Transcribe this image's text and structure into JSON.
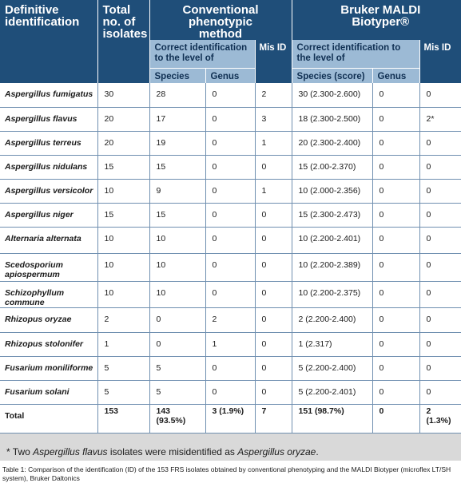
{
  "header": {
    "col_definitive": "Definitive identification",
    "col_total": "Total no. of isolates",
    "col_conventional": "Conventional phenotypic method",
    "col_bruker": "Bruker MALDI Biotyper®",
    "conv_correct": "Correct identification to the level of",
    "conv_misid": "Mis ID",
    "bruker_correct": "Correct identification to the level of",
    "bruker_misid": "Mis ID",
    "conv_species": "Species",
    "conv_genus": "Genus",
    "bruker_species": "Species (score)",
    "bruker_genus": "Genus"
  },
  "rows": [
    {
      "name": "Aspergillus fumigatus",
      "total": "30",
      "conv_species": "28",
      "conv_genus": "0",
      "conv_misid": "2",
      "bruker_species": "30 (2.300-2.600)",
      "bruker_genus": "0",
      "bruker_misid": "0"
    },
    {
      "name": "Aspergillus flavus",
      "total": "20",
      "conv_species": "17",
      "conv_genus": "0",
      "conv_misid": "3",
      "bruker_species": "18 (2.300-2.500)",
      "bruker_genus": "0",
      "bruker_misid": "2*"
    },
    {
      "name": "Aspergillus terreus",
      "total": "20",
      "conv_species": "19",
      "conv_genus": "0",
      "conv_misid": "1",
      "bruker_species": "20 (2.300-2.400)",
      "bruker_genus": "0",
      "bruker_misid": "0"
    },
    {
      "name": "Aspergillus nidulans",
      "total": "15",
      "conv_species": "15",
      "conv_genus": "0",
      "conv_misid": "0",
      "bruker_species": "15 (2.00-2.370)",
      "bruker_genus": "0",
      "bruker_misid": "0"
    },
    {
      "name": "Aspergillus versicolor",
      "total": "10",
      "conv_species": "9",
      "conv_genus": "0",
      "conv_misid": "1",
      "bruker_species": "10 (2.000-2.356)",
      "bruker_genus": "0",
      "bruker_misid": "0"
    },
    {
      "name": "Aspergillus niger",
      "total": "15",
      "conv_species": "15",
      "conv_genus": "0",
      "conv_misid": "0",
      "bruker_species": "15 (2.300-2.473)",
      "bruker_genus": "0",
      "bruker_misid": "0"
    },
    {
      "name": "Alternaria alternata",
      "total": "10",
      "conv_species": "10",
      "conv_genus": "0",
      "conv_misid": "0",
      "bruker_species": "10 (2.200-2.401)",
      "bruker_genus": "0",
      "bruker_misid": "0"
    },
    {
      "name": "Scedosporium apiospermum",
      "total": "10",
      "conv_species": "10",
      "conv_genus": "0",
      "conv_misid": "0",
      "bruker_species": "10 (2.200-2.389)",
      "bruker_genus": "0",
      "bruker_misid": "0"
    },
    {
      "name": "Schizophyllum commune",
      "total": "10",
      "conv_species": "10",
      "conv_genus": "0",
      "conv_misid": "0",
      "bruker_species": "10 (2.200-2.375)",
      "bruker_genus": "0",
      "bruker_misid": "0"
    },
    {
      "name": "Rhizopus oryzae",
      "total": "2",
      "conv_species": "0",
      "conv_genus": "2",
      "conv_misid": "0",
      "bruker_species": "2 (2.200-2.400)",
      "bruker_genus": "0",
      "bruker_misid": "0"
    },
    {
      "name": "Rhizopus stolonifer",
      "total": "1",
      "conv_species": "0",
      "conv_genus": "1",
      "conv_misid": "0",
      "bruker_species": "1 (2.317)",
      "bruker_genus": "0",
      "bruker_misid": "0"
    },
    {
      "name": "Fusarium moniliforme",
      "total": "5",
      "conv_species": "5",
      "conv_genus": "0",
      "conv_misid": "0",
      "bruker_species": "5 (2.200-2.400)",
      "bruker_genus": "0",
      "bruker_misid": "0"
    },
    {
      "name": "Fusarium solani",
      "total": "5",
      "conv_species": "5",
      "conv_genus": "0",
      "conv_misid": "0",
      "bruker_species": "5 (2.200-2.401)",
      "bruker_genus": "0",
      "bruker_misid": "0"
    }
  ],
  "total_row": {
    "label": "Total",
    "total": "153",
    "conv_species": "143 (93.5%)",
    "conv_genus": "3 (1.9%)",
    "conv_misid": "7",
    "bruker_species": "151 (98.7%)",
    "bruker_genus": "0",
    "bruker_misid": "2 (1.3%)"
  },
  "footnote": {
    "part1": "* Two ",
    "italic1": "Aspergillus flavus",
    "part2": " isolates were misidentified as ",
    "italic2": "Aspergillus oryzae",
    "part3": "."
  },
  "caption": "Table 1: Comparison of the identification (ID) of the 153 FRS isolates obtained by conventional phenotyping and the MALDI Biotyper (microflex LT/SH system), Bruker Daltonics",
  "colors": {
    "header_bg": "#1f4e79",
    "subheader_bg": "#9cbad5",
    "grid": "#6f8fb0",
    "footnote_bg": "#d9d9d9"
  }
}
